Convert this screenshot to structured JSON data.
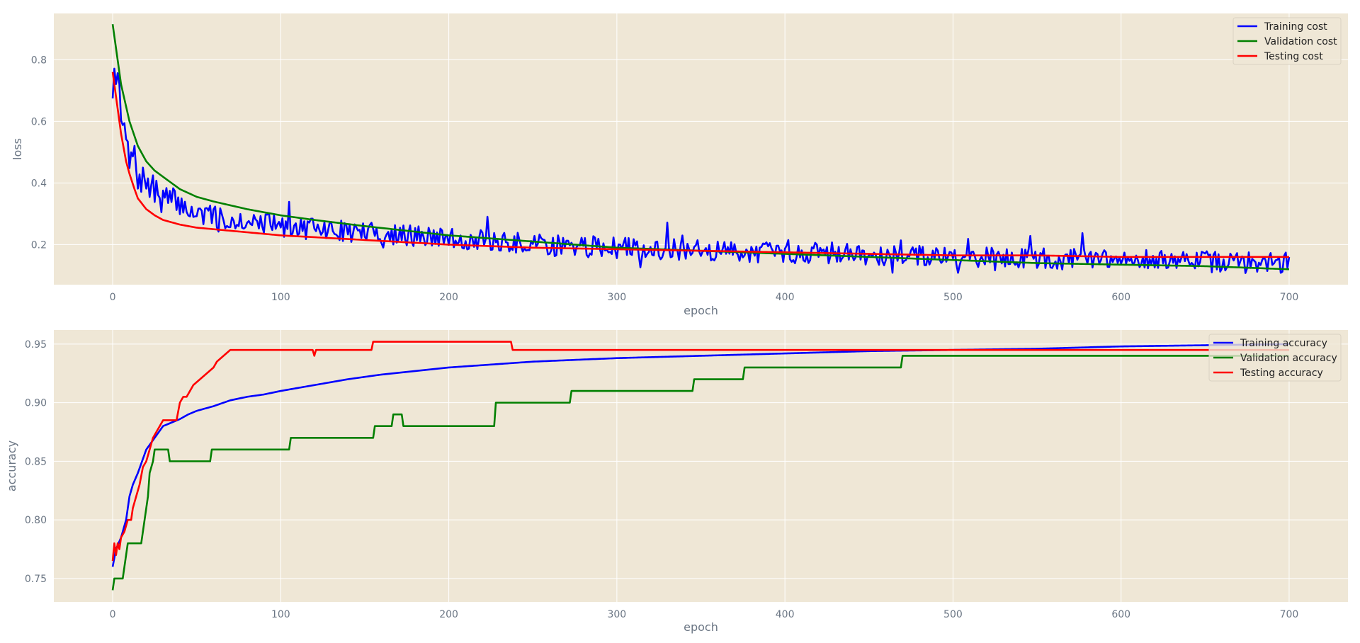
{
  "chart_data": [
    {
      "type": "line",
      "title": "",
      "xlabel": "epoch",
      "ylabel": "loss",
      "xlim": [
        -35,
        735
      ],
      "ylim": [
        0.07,
        0.95
      ],
      "xticks": [
        0,
        100,
        200,
        300,
        400,
        500,
        600,
        700
      ],
      "yticks": [
        0.2,
        0.4,
        0.6,
        0.8
      ],
      "grid": true,
      "legend_position": "top-right",
      "background": "#efe7d6",
      "series": [
        {
          "name": "Training cost",
          "color": "#0000ff",
          "noisy": true,
          "points": [
            [
              0,
              0.7
            ],
            [
              1,
              0.76
            ],
            [
              3,
              0.77
            ],
            [
              5,
              0.6
            ],
            [
              8,
              0.55
            ],
            [
              10,
              0.45
            ],
            [
              12,
              0.5
            ],
            [
              15,
              0.42
            ],
            [
              20,
              0.4
            ],
            [
              25,
              0.37
            ],
            [
              30,
              0.35
            ],
            [
              40,
              0.33
            ],
            [
              50,
              0.3
            ],
            [
              60,
              0.29
            ],
            [
              80,
              0.28
            ],
            [
              100,
              0.26
            ],
            [
              120,
              0.25
            ],
            [
              150,
              0.24
            ],
            [
              200,
              0.22
            ],
            [
              250,
              0.2
            ],
            [
              300,
              0.19
            ],
            [
              350,
              0.18
            ],
            [
              400,
              0.175
            ],
            [
              450,
              0.17
            ],
            [
              500,
              0.16
            ],
            [
              550,
              0.155
            ],
            [
              600,
              0.15
            ],
            [
              650,
              0.145
            ],
            [
              700,
              0.14
            ]
          ],
          "noise": 0.035
        },
        {
          "name": "Validation cost",
          "color": "#008000",
          "points": [
            [
              0,
              0.915
            ],
            [
              5,
              0.72
            ],
            [
              10,
              0.6
            ],
            [
              15,
              0.52
            ],
            [
              20,
              0.47
            ],
            [
              25,
              0.44
            ],
            [
              30,
              0.42
            ],
            [
              40,
              0.38
            ],
            [
              50,
              0.355
            ],
            [
              60,
              0.34
            ],
            [
              80,
              0.315
            ],
            [
              100,
              0.295
            ],
            [
              120,
              0.28
            ],
            [
              150,
              0.26
            ],
            [
              200,
              0.23
            ],
            [
              250,
              0.21
            ],
            [
              300,
              0.19
            ],
            [
              350,
              0.18
            ],
            [
              400,
              0.17
            ],
            [
              450,
              0.16
            ],
            [
              500,
              0.15
            ],
            [
              550,
              0.14
            ],
            [
              600,
              0.135
            ],
            [
              650,
              0.13
            ],
            [
              700,
              0.12
            ]
          ]
        },
        {
          "name": "Testing cost",
          "color": "#ff0000",
          "points": [
            [
              0,
              0.76
            ],
            [
              2,
              0.68
            ],
            [
              5,
              0.56
            ],
            [
              8,
              0.47
            ],
            [
              10,
              0.43
            ],
            [
              13,
              0.38
            ],
            [
              15,
              0.35
            ],
            [
              20,
              0.315
            ],
            [
              25,
              0.295
            ],
            [
              30,
              0.28
            ],
            [
              40,
              0.265
            ],
            [
              50,
              0.255
            ],
            [
              60,
              0.25
            ],
            [
              80,
              0.24
            ],
            [
              100,
              0.23
            ],
            [
              150,
              0.215
            ],
            [
              200,
              0.2
            ],
            [
              250,
              0.19
            ],
            [
              300,
              0.185
            ],
            [
              350,
              0.18
            ],
            [
              400,
              0.175
            ],
            [
              450,
              0.17
            ],
            [
              500,
              0.165
            ],
            [
              550,
              0.165
            ],
            [
              600,
              0.16
            ],
            [
              650,
              0.16
            ],
            [
              700,
              0.16
            ]
          ]
        }
      ]
    },
    {
      "type": "line",
      "title": "",
      "xlabel": "epoch",
      "ylabel": "accuracy",
      "xlim": [
        -35,
        735
      ],
      "ylim": [
        0.73,
        0.962
      ],
      "xticks": [
        0,
        100,
        200,
        300,
        400,
        500,
        600,
        700
      ],
      "yticks": [
        0.75,
        0.8,
        0.85,
        0.9,
        0.95
      ],
      "grid": true,
      "legend_position": "top-right",
      "background": "#efe7d6",
      "series": [
        {
          "name": "Training accuracy",
          "color": "#0000ff",
          "points": [
            [
              0,
              0.76
            ],
            [
              2,
              0.775
            ],
            [
              5,
              0.785
            ],
            [
              8,
              0.8
            ],
            [
              10,
              0.82
            ],
            [
              12,
              0.83
            ],
            [
              15,
              0.84
            ],
            [
              20,
              0.86
            ],
            [
              25,
              0.87
            ],
            [
              30,
              0.88
            ],
            [
              35,
              0.883
            ],
            [
              40,
              0.886
            ],
            [
              45,
              0.89
            ],
            [
              50,
              0.893
            ],
            [
              60,
              0.897
            ],
            [
              70,
              0.902
            ],
            [
              80,
              0.905
            ],
            [
              90,
              0.907
            ],
            [
              100,
              0.91
            ],
            [
              120,
              0.915
            ],
            [
              140,
              0.92
            ],
            [
              160,
              0.924
            ],
            [
              180,
              0.927
            ],
            [
              200,
              0.93
            ],
            [
              220,
              0.932
            ],
            [
              250,
              0.935
            ],
            [
              300,
              0.938
            ],
            [
              350,
              0.94
            ],
            [
              400,
              0.942
            ],
            [
              450,
              0.944
            ],
            [
              500,
              0.945
            ],
            [
              550,
              0.946
            ],
            [
              600,
              0.948
            ],
            [
              650,
              0.949
            ],
            [
              700,
              0.95
            ]
          ]
        },
        {
          "name": "Validation accuracy",
          "color": "#008000",
          "steps": true,
          "points": [
            [
              0,
              0.74
            ],
            [
              1,
              0.75
            ],
            [
              6,
              0.75
            ],
            [
              9,
              0.78
            ],
            [
              17,
              0.78
            ],
            [
              18,
              0.79
            ],
            [
              20,
              0.81
            ],
            [
              21,
              0.82
            ],
            [
              22,
              0.84
            ],
            [
              24,
              0.85
            ],
            [
              25,
              0.86
            ],
            [
              33,
              0.86
            ],
            [
              34,
              0.85
            ],
            [
              58,
              0.85
            ],
            [
              59,
              0.86
            ],
            [
              105,
              0.86
            ],
            [
              106,
              0.87
            ],
            [
              155,
              0.87
            ],
            [
              156,
              0.88
            ],
            [
              166,
              0.88
            ],
            [
              167,
              0.89
            ],
            [
              172,
              0.89
            ],
            [
              173,
              0.88
            ],
            [
              227,
              0.88
            ],
            [
              228,
              0.9
            ],
            [
              272,
              0.9
            ],
            [
              273,
              0.91
            ],
            [
              345,
              0.91
            ],
            [
              346,
              0.92
            ],
            [
              375,
              0.92
            ],
            [
              376,
              0.93
            ],
            [
              469,
              0.93
            ],
            [
              470,
              0.94
            ],
            [
              700,
              0.94
            ]
          ]
        },
        {
          "name": "Testing accuracy",
          "color": "#ff0000",
          "steps": true,
          "points": [
            [
              0,
              0.765
            ],
            [
              1,
              0.78
            ],
            [
              2,
              0.77
            ],
            [
              3,
              0.78
            ],
            [
              4,
              0.775
            ],
            [
              5,
              0.785
            ],
            [
              7,
              0.79
            ],
            [
              9,
              0.8
            ],
            [
              11,
              0.8
            ],
            [
              12,
              0.81
            ],
            [
              13,
              0.815
            ],
            [
              14,
              0.82
            ],
            [
              16,
              0.83
            ],
            [
              18,
              0.845
            ],
            [
              20,
              0.85
            ],
            [
              22,
              0.86
            ],
            [
              24,
              0.87
            ],
            [
              26,
              0.875
            ],
            [
              28,
              0.88
            ],
            [
              30,
              0.885
            ],
            [
              38,
              0.885
            ],
            [
              40,
              0.9
            ],
            [
              42,
              0.905
            ],
            [
              44,
              0.905
            ],
            [
              46,
              0.91
            ],
            [
              48,
              0.915
            ],
            [
              52,
              0.92
            ],
            [
              56,
              0.925
            ],
            [
              60,
              0.93
            ],
            [
              62,
              0.935
            ],
            [
              66,
              0.94
            ],
            [
              70,
              0.945
            ],
            [
              119,
              0.945
            ],
            [
              120,
              0.94
            ],
            [
              121,
              0.945
            ],
            [
              154,
              0.945
            ],
            [
              155,
              0.952
            ],
            [
              237,
              0.952
            ],
            [
              238,
              0.945
            ],
            [
              700,
              0.945
            ]
          ]
        }
      ]
    }
  ]
}
